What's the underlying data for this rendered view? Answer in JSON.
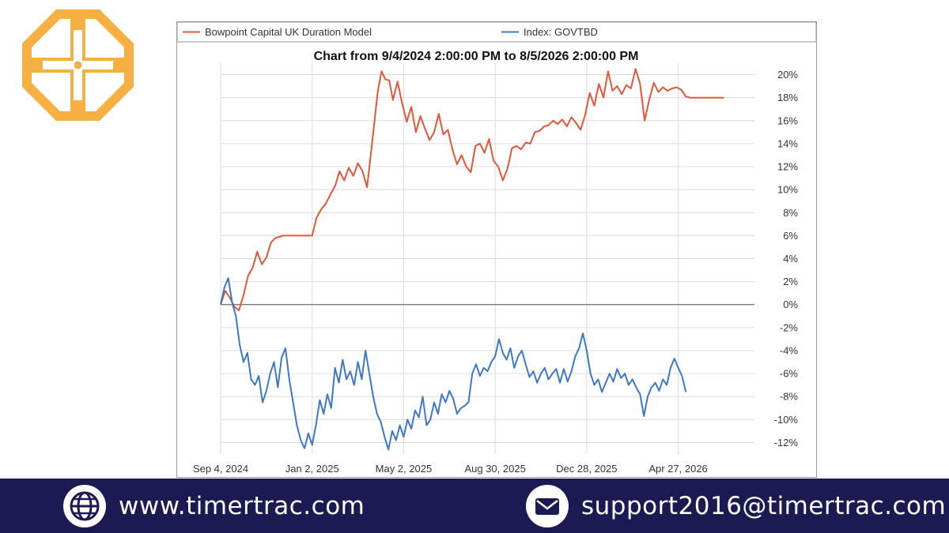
{
  "colors": {
    "logo": "#f5b041",
    "footer_bg": "#1c1a52",
    "series_model": "#e0573a",
    "series_index": "#3d78c8",
    "grid": "#dcdcdc",
    "zero_line": "#555555"
  },
  "logo": {
    "icon": "cross-emblem-icon"
  },
  "footer": {
    "website": {
      "icon": "globe-icon",
      "text": "www.timertrac.com"
    },
    "email": {
      "icon": "envelope-icon",
      "text": "support2016@timertrac.com"
    }
  },
  "chart_data": {
    "type": "line",
    "title": "Chart from 9/4/2024 2:00:00 PM to 8/5/2026 2:00:00 PM",
    "legend_position": "top",
    "grid": true,
    "xlim": [
      "2024-09-04",
      "2026-08-05"
    ],
    "ylim": [
      -13,
      21
    ],
    "y_ticks": [
      20,
      18,
      16,
      14,
      12,
      10,
      8,
      6,
      4,
      2,
      0,
      -2,
      -4,
      -6,
      -8,
      -10,
      -12
    ],
    "y_tick_labels": [
      "20%",
      "18%",
      "16%",
      "14%",
      "12%",
      "10%",
      "8%",
      "6%",
      "4%",
      "2%",
      "0%",
      "-2%",
      "-4%",
      "-6%",
      "-8%",
      "-10%",
      "-12%"
    ],
    "x_ticks": [
      "2024-09-04",
      "2025-01-02",
      "2025-05-02",
      "2025-08-30",
      "2025-12-28",
      "2026-04-27"
    ],
    "x_tick_labels": [
      "Sep 4, 2024",
      "Jan 2, 2025",
      "May 2, 2025",
      "Aug 30, 2025",
      "Dec 28, 2025",
      "Apr 27, 2026"
    ],
    "series": [
      {
        "name": "Bowpoint Capital UK Duration Model",
        "color": "#e0573a",
        "points": [
          [
            "2024-09-04",
            0
          ],
          [
            "2024-09-10",
            1.2
          ],
          [
            "2024-09-16",
            0.6
          ],
          [
            "2024-09-22",
            -0.2
          ],
          [
            "2024-09-28",
            -0.5
          ],
          [
            "2024-10-04",
            0.8
          ],
          [
            "2024-10-10",
            2.5
          ],
          [
            "2024-10-16",
            3.2
          ],
          [
            "2024-10-22",
            4.6
          ],
          [
            "2024-10-28",
            3.5
          ],
          [
            "2024-11-03",
            4.1
          ],
          [
            "2024-11-09",
            5.4
          ],
          [
            "2024-11-15",
            5.8
          ],
          [
            "2024-11-25",
            6.0
          ],
          [
            "2024-12-10",
            6.0
          ],
          [
            "2024-12-25",
            6.0
          ],
          [
            "2025-01-02",
            6.0
          ],
          [
            "2025-01-08",
            7.6
          ],
          [
            "2025-01-14",
            8.3
          ],
          [
            "2025-01-20",
            8.8
          ],
          [
            "2025-01-26",
            9.6
          ],
          [
            "2025-02-01",
            10.3
          ],
          [
            "2025-02-07",
            11.6
          ],
          [
            "2025-02-13",
            10.8
          ],
          [
            "2025-02-19",
            11.9
          ],
          [
            "2025-02-25",
            11.2
          ],
          [
            "2025-03-03",
            12.3
          ],
          [
            "2025-03-09",
            11.6
          ],
          [
            "2025-03-15",
            10.2
          ],
          [
            "2025-03-19",
            12.5
          ],
          [
            "2025-03-24",
            15.5
          ],
          [
            "2025-03-29",
            18.5
          ],
          [
            "2025-04-03",
            20.3
          ],
          [
            "2025-04-08",
            19.6
          ],
          [
            "2025-04-13",
            19.5
          ],
          [
            "2025-04-18",
            17.8
          ],
          [
            "2025-04-24",
            19.4
          ],
          [
            "2025-04-30",
            17.5
          ],
          [
            "2025-05-06",
            15.9
          ],
          [
            "2025-05-12",
            17.2
          ],
          [
            "2025-05-18",
            15.0
          ],
          [
            "2025-05-24",
            16.4
          ],
          [
            "2025-05-30",
            15.3
          ],
          [
            "2025-06-05",
            14.3
          ],
          [
            "2025-06-11",
            15.0
          ],
          [
            "2025-06-17",
            16.6
          ],
          [
            "2025-06-23",
            14.8
          ],
          [
            "2025-06-29",
            15.2
          ],
          [
            "2025-07-05",
            13.5
          ],
          [
            "2025-07-11",
            12.2
          ],
          [
            "2025-07-17",
            13.0
          ],
          [
            "2025-07-23",
            12.0
          ],
          [
            "2025-07-29",
            11.5
          ],
          [
            "2025-08-04",
            13.8
          ],
          [
            "2025-08-10",
            14.0
          ],
          [
            "2025-08-16",
            13.2
          ],
          [
            "2025-08-22",
            14.4
          ],
          [
            "2025-08-28",
            12.5
          ],
          [
            "2025-09-03",
            12.0
          ],
          [
            "2025-09-09",
            10.8
          ],
          [
            "2025-09-15",
            11.8
          ],
          [
            "2025-09-21",
            13.6
          ],
          [
            "2025-09-27",
            13.8
          ],
          [
            "2025-10-03",
            13.5
          ],
          [
            "2025-10-09",
            14.1
          ],
          [
            "2025-10-15",
            14.0
          ],
          [
            "2025-10-21",
            15.0
          ],
          [
            "2025-10-27",
            15.1
          ],
          [
            "2025-11-02",
            15.5
          ],
          [
            "2025-11-08",
            15.6
          ],
          [
            "2025-11-14",
            16.0
          ],
          [
            "2025-11-20",
            15.7
          ],
          [
            "2025-11-26",
            16.1
          ],
          [
            "2025-12-02",
            15.5
          ],
          [
            "2025-12-08",
            16.3
          ],
          [
            "2025-12-14",
            15.8
          ],
          [
            "2025-12-20",
            15.2
          ],
          [
            "2025-12-26",
            16.5
          ],
          [
            "2026-01-01",
            18.4
          ],
          [
            "2026-01-07",
            17.3
          ],
          [
            "2026-01-13",
            19.2
          ],
          [
            "2026-01-19",
            18.0
          ],
          [
            "2026-01-25",
            20.3
          ],
          [
            "2026-01-31",
            18.6
          ],
          [
            "2026-02-06",
            19.0
          ],
          [
            "2026-02-12",
            18.3
          ],
          [
            "2026-02-18",
            19.1
          ],
          [
            "2026-02-24",
            18.8
          ],
          [
            "2026-03-02",
            20.5
          ],
          [
            "2026-03-08",
            19.2
          ],
          [
            "2026-03-14",
            16.0
          ],
          [
            "2026-03-20",
            17.8
          ],
          [
            "2026-03-26",
            19.3
          ],
          [
            "2026-04-01",
            18.5
          ],
          [
            "2026-04-07",
            18.9
          ],
          [
            "2026-04-13",
            18.6
          ],
          [
            "2026-04-19",
            18.8
          ],
          [
            "2026-04-25",
            18.9
          ],
          [
            "2026-05-01",
            18.7
          ],
          [
            "2026-05-07",
            18.1
          ],
          [
            "2026-05-13",
            18.0
          ],
          [
            "2026-05-25",
            18.0
          ],
          [
            "2026-06-10",
            18.0
          ],
          [
            "2026-06-26",
            18.0
          ]
        ]
      },
      {
        "name": "Index: GOVTBD",
        "color": "#3d78c8",
        "points": [
          [
            "2024-09-04",
            0
          ],
          [
            "2024-09-09",
            1.5
          ],
          [
            "2024-09-14",
            2.3
          ],
          [
            "2024-09-19",
            0.2
          ],
          [
            "2024-09-24",
            -1.0
          ],
          [
            "2024-09-29",
            -3.5
          ],
          [
            "2024-10-04",
            -5.0
          ],
          [
            "2024-10-09",
            -4.2
          ],
          [
            "2024-10-14",
            -6.5
          ],
          [
            "2024-10-19",
            -7.0
          ],
          [
            "2024-10-24",
            -6.2
          ],
          [
            "2024-10-29",
            -8.5
          ],
          [
            "2024-11-03",
            -7.5
          ],
          [
            "2024-11-08",
            -6.0
          ],
          [
            "2024-11-13",
            -5.0
          ],
          [
            "2024-11-18",
            -7.2
          ],
          [
            "2024-11-23",
            -4.6
          ],
          [
            "2024-11-28",
            -3.8
          ],
          [
            "2024-12-03",
            -6.5
          ],
          [
            "2024-12-08",
            -8.5
          ],
          [
            "2024-12-13",
            -10.5
          ],
          [
            "2024-12-18",
            -11.8
          ],
          [
            "2024-12-23",
            -12.5
          ],
          [
            "2024-12-28",
            -11.2
          ],
          [
            "2025-01-02",
            -12.2
          ],
          [
            "2025-01-07",
            -10.5
          ],
          [
            "2025-01-12",
            -8.3
          ],
          [
            "2025-01-17",
            -9.5
          ],
          [
            "2025-01-22",
            -7.8
          ],
          [
            "2025-01-27",
            -9.0
          ],
          [
            "2025-02-01",
            -5.5
          ],
          [
            "2025-02-06",
            -6.8
          ],
          [
            "2025-02-11",
            -4.8
          ],
          [
            "2025-02-16",
            -6.5
          ],
          [
            "2025-02-21",
            -5.8
          ],
          [
            "2025-02-26",
            -7.0
          ],
          [
            "2025-03-03",
            -5.0
          ],
          [
            "2025-03-08",
            -6.5
          ],
          [
            "2025-03-13",
            -4.0
          ],
          [
            "2025-03-18",
            -6.0
          ],
          [
            "2025-03-23",
            -8.0
          ],
          [
            "2025-03-28",
            -9.5
          ],
          [
            "2025-04-02",
            -10.2
          ],
          [
            "2025-04-07",
            -11.5
          ],
          [
            "2025-04-12",
            -12.6
          ],
          [
            "2025-04-17",
            -11.0
          ],
          [
            "2025-04-22",
            -11.8
          ],
          [
            "2025-04-27",
            -10.5
          ],
          [
            "2025-05-02",
            -11.5
          ],
          [
            "2025-05-07",
            -10.0
          ],
          [
            "2025-05-12",
            -10.8
          ],
          [
            "2025-05-17",
            -9.2
          ],
          [
            "2025-05-22",
            -9.8
          ],
          [
            "2025-05-27",
            -8.0
          ],
          [
            "2025-06-01",
            -10.5
          ],
          [
            "2025-06-06",
            -10.0
          ],
          [
            "2025-06-11",
            -8.5
          ],
          [
            "2025-06-16",
            -9.5
          ],
          [
            "2025-06-21",
            -7.8
          ],
          [
            "2025-06-26",
            -8.5
          ],
          [
            "2025-07-01",
            -7.5
          ],
          [
            "2025-07-06",
            -8.2
          ],
          [
            "2025-07-11",
            -9.5
          ],
          [
            "2025-07-16",
            -9.0
          ],
          [
            "2025-07-21",
            -8.8
          ],
          [
            "2025-07-26",
            -8.5
          ],
          [
            "2025-07-31",
            -6.0
          ],
          [
            "2025-08-05",
            -5.2
          ],
          [
            "2025-08-10",
            -6.2
          ],
          [
            "2025-08-15",
            -5.5
          ],
          [
            "2025-08-20",
            -5.8
          ],
          [
            "2025-08-25",
            -5.0
          ],
          [
            "2025-08-30",
            -4.5
          ],
          [
            "2025-09-04",
            -3.0
          ],
          [
            "2025-09-09",
            -4.2
          ],
          [
            "2025-09-14",
            -4.8
          ],
          [
            "2025-09-19",
            -3.8
          ],
          [
            "2025-09-24",
            -5.5
          ],
          [
            "2025-09-29",
            -4.5
          ],
          [
            "2025-10-04",
            -4.0
          ],
          [
            "2025-10-09",
            -5.2
          ],
          [
            "2025-10-14",
            -6.3
          ],
          [
            "2025-10-19",
            -5.8
          ],
          [
            "2025-10-24",
            -6.8
          ],
          [
            "2025-10-29",
            -6.0
          ],
          [
            "2025-11-03",
            -5.5
          ],
          [
            "2025-11-08",
            -6.5
          ],
          [
            "2025-11-13",
            -6.0
          ],
          [
            "2025-11-18",
            -5.6
          ],
          [
            "2025-11-23",
            -6.8
          ],
          [
            "2025-11-28",
            -5.6
          ],
          [
            "2025-12-03",
            -6.7
          ],
          [
            "2025-12-08",
            -5.8
          ],
          [
            "2025-12-13",
            -4.5
          ],
          [
            "2025-12-18",
            -3.8
          ],
          [
            "2025-12-23",
            -2.5
          ],
          [
            "2025-12-28",
            -4.0
          ],
          [
            "2026-01-02",
            -6.0
          ],
          [
            "2026-01-07",
            -7.0
          ],
          [
            "2026-01-12",
            -6.5
          ],
          [
            "2026-01-17",
            -7.6
          ],
          [
            "2026-01-22",
            -6.8
          ],
          [
            "2026-01-27",
            -6.0
          ],
          [
            "2026-02-01",
            -6.7
          ],
          [
            "2026-02-06",
            -5.6
          ],
          [
            "2026-02-11",
            -6.4
          ],
          [
            "2026-02-16",
            -6.0
          ],
          [
            "2026-02-21",
            -7.0
          ],
          [
            "2026-02-26",
            -6.5
          ],
          [
            "2026-03-03",
            -7.2
          ],
          [
            "2026-03-08",
            -7.8
          ],
          [
            "2026-03-13",
            -9.7
          ],
          [
            "2026-03-18",
            -8.0
          ],
          [
            "2026-03-23",
            -7.2
          ],
          [
            "2026-03-28",
            -6.8
          ],
          [
            "2026-04-02",
            -7.5
          ],
          [
            "2026-04-07",
            -6.5
          ],
          [
            "2026-04-12",
            -7.0
          ],
          [
            "2026-04-17",
            -5.5
          ],
          [
            "2026-04-22",
            -4.7
          ],
          [
            "2026-04-27",
            -5.5
          ],
          [
            "2026-05-02",
            -6.2
          ],
          [
            "2026-05-07",
            -7.6
          ]
        ]
      }
    ]
  }
}
